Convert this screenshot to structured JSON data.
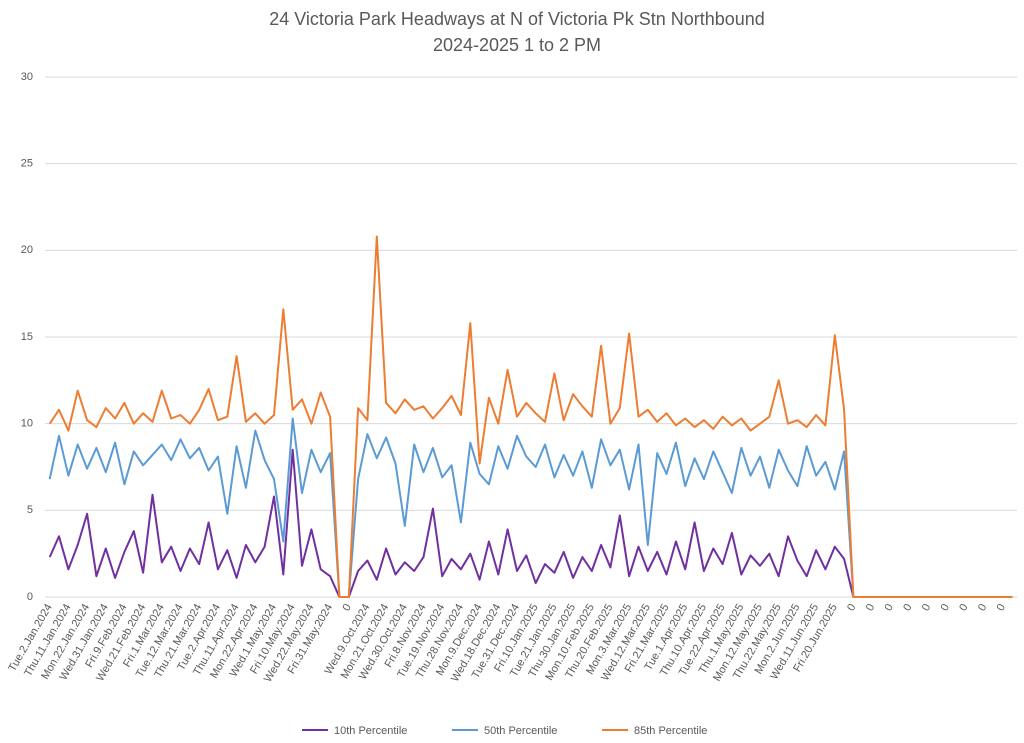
{
  "chart_data": {
    "type": "line",
    "title": "24 Victoria Park Headways at N of Victoria Pk Stn Northbound",
    "subtitle": "2024-2025 1 to 2 PM",
    "categories": [
      "Tue.2.Jan.2024",
      null,
      "Thu.11.Jan.2024",
      null,
      "Mon.22.Jan.2024",
      null,
      "Wed.31.Jan.2024",
      null,
      "Fri.9.Feb.2024",
      null,
      "Wed.21.Feb.2024",
      null,
      "Fri.1.Mar.2024",
      null,
      "Tue.12.Mar.2024",
      null,
      "Thu.21.Mar.2024",
      null,
      "Tue.2.Apr.2024",
      null,
      "Thu.11.Apr.2024",
      null,
      "Mon.22.Apr.2024",
      null,
      "Wed.1.May.2024",
      null,
      "Fri.10.May.2024",
      null,
      "Wed.22.May.2024",
      null,
      "Fri.31.May.2024",
      null,
      "0",
      null,
      "Wed.9.Oct.2024",
      null,
      "Mon.21.Oct.2024",
      null,
      "Wed.30.Oct.2024",
      null,
      "Fri.8.Nov.2024",
      null,
      "Tue.19.Nov.2024",
      null,
      "Thu.28.Nov.2024",
      null,
      "Mon.9.Dec.2024",
      null,
      "Wed.18.Dec.2024",
      null,
      "Tue.31.Dec.2024",
      null,
      "Fri.10.Jan.2025",
      null,
      "Tue.21.Jan.2025",
      null,
      "Thu.30.Jan.2025",
      null,
      "Mon.10.Feb.2025",
      null,
      "Thu.20.Feb.2025",
      null,
      "Mon.3.Mar.2025",
      null,
      "Wed.12.Mar.2025",
      null,
      "Fri.21.Mar.2025",
      null,
      "Tue.1.Apr.2025",
      null,
      "Thu.10.Apr.2025",
      null,
      "Tue.22.Apr.2025",
      null,
      "Thu.1.May.2025",
      null,
      "Mon.12.May.2025",
      null,
      "Thu.22.May.2025",
      null,
      "Mon.2.Jun.2025",
      null,
      "Wed.11.Jun.2025",
      null,
      "Fri.20.Jun.2025",
      null,
      "0",
      null,
      "0",
      null,
      "0",
      null,
      "0",
      null,
      "0",
      null,
      "0",
      null,
      "0",
      null,
      "0",
      null,
      "0",
      null
    ],
    "series": [
      {
        "name": "10th Percentile",
        "color": "#7030a0",
        "values": [
          2.3,
          3.5,
          1.6,
          3.0,
          4.8,
          1.2,
          2.8,
          1.1,
          2.6,
          3.8,
          1.4,
          5.9,
          2.0,
          2.9,
          1.5,
          2.8,
          1.9,
          4.3,
          1.6,
          2.7,
          1.1,
          3.0,
          2.0,
          2.9,
          5.8,
          1.3,
          8.5,
          1.8,
          3.9,
          1.6,
          1.2,
          0,
          0,
          1.5,
          2.1,
          1.0,
          2.8,
          1.3,
          2.0,
          1.5,
          2.3,
          5.1,
          1.2,
          2.2,
          1.6,
          2.5,
          1.0,
          3.2,
          1.3,
          3.9,
          1.5,
          2.4,
          0.8,
          1.9,
          1.4,
          2.6,
          1.1,
          2.3,
          1.5,
          3.0,
          1.7,
          4.7,
          1.2,
          2.9,
          1.5,
          2.6,
          1.3,
          3.2,
          1.6,
          4.3,
          1.5,
          2.8,
          1.9,
          3.7,
          1.3,
          2.4,
          1.8,
          2.5,
          1.2,
          3.5,
          2.1,
          1.2,
          2.7,
          1.6,
          2.9,
          2.2,
          0,
          0,
          0,
          0,
          0,
          0,
          0,
          0,
          0,
          0,
          0,
          0,
          0,
          0,
          0,
          0,
          0,
          0
        ]
      },
      {
        "name": "50th Percentile",
        "color": "#5b9bd5",
        "values": [
          6.8,
          9.3,
          7.0,
          8.8,
          7.4,
          8.6,
          7.2,
          8.9,
          6.5,
          8.4,
          7.6,
          8.2,
          8.8,
          7.9,
          9.1,
          8.0,
          8.6,
          7.3,
          8.1,
          4.8,
          8.7,
          6.3,
          9.6,
          7.9,
          6.8,
          3.2,
          10.3,
          6.0,
          8.5,
          7.2,
          8.3,
          0,
          0,
          6.8,
          9.4,
          8.0,
          9.2,
          7.7,
          4.1,
          8.8,
          7.2,
          8.6,
          6.9,
          7.6,
          4.3,
          8.9,
          7.1,
          6.5,
          8.7,
          7.4,
          9.3,
          8.1,
          7.5,
          8.8,
          6.9,
          8.2,
          7.0,
          8.4,
          6.3,
          9.1,
          7.6,
          8.5,
          6.2,
          8.8,
          3.0,
          8.3,
          7.1,
          8.9,
          6.4,
          8.0,
          6.8,
          8.4,
          7.2,
          6.0,
          8.6,
          7.0,
          8.1,
          6.3,
          8.5,
          7.3,
          6.4,
          8.7,
          7.0,
          7.8,
          6.2,
          8.4,
          0,
          0,
          0,
          0,
          0,
          0,
          0,
          0,
          0,
          0,
          0,
          0,
          0,
          0,
          0,
          0,
          0,
          0
        ]
      },
      {
        "name": "85th Percentile",
        "color": "#ed7d31",
        "values": [
          10.0,
          10.8,
          9.6,
          11.9,
          10.2,
          9.8,
          10.9,
          10.3,
          11.2,
          10.0,
          10.6,
          10.1,
          11.9,
          10.3,
          10.5,
          10.0,
          10.8,
          12.0,
          10.2,
          10.4,
          13.9,
          10.1,
          10.6,
          10.0,
          10.5,
          16.6,
          10.8,
          11.4,
          10.0,
          11.8,
          10.4,
          0,
          0,
          10.9,
          10.2,
          20.8,
          11.2,
          10.6,
          11.4,
          10.8,
          11.0,
          10.3,
          10.9,
          11.6,
          10.5,
          15.8,
          7.7,
          11.5,
          10.0,
          13.1,
          10.4,
          11.2,
          10.6,
          10.1,
          12.9,
          10.2,
          11.7,
          11.0,
          10.4,
          14.5,
          10.0,
          10.9,
          15.2,
          10.4,
          10.8,
          10.1,
          10.6,
          9.9,
          10.3,
          9.8,
          10.2,
          9.7,
          10.4,
          9.9,
          10.3,
          9.6,
          10.0,
          10.4,
          12.5,
          10.0,
          10.2,
          9.8,
          10.5,
          9.9,
          15.1,
          10.8,
          0,
          0,
          0,
          0,
          0,
          0,
          0,
          0,
          0,
          0,
          0,
          0,
          0,
          0,
          0,
          0,
          0,
          0
        ]
      }
    ],
    "ylim": [
      0,
      30
    ],
    "yticks": [
      0,
      5,
      10,
      15,
      20,
      25,
      30
    ],
    "grid": true,
    "legend": "bottom"
  }
}
